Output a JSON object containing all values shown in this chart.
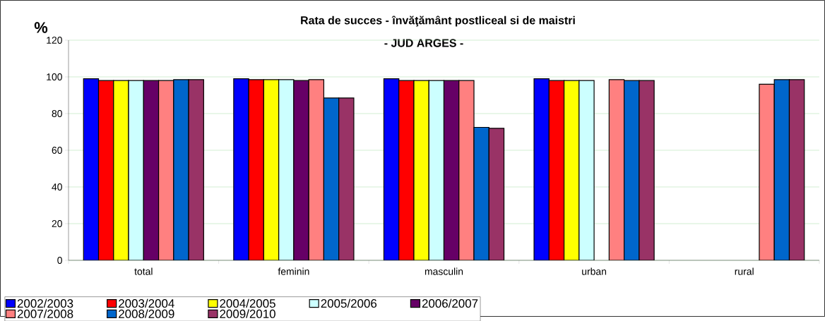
{
  "chart_data": {
    "type": "bar",
    "title": "Rata de succes - învăţământ postliceal si de maistri",
    "subtitle": "- JUD ARGES -",
    "ylabel": "%",
    "categories": [
      "total",
      "feminin",
      "masculin",
      "urban",
      "rural"
    ],
    "series": [
      {
        "name": "2002/2003",
        "color": "#0000ff",
        "values": [
          99,
          99,
          99,
          99,
          null
        ]
      },
      {
        "name": "2003/2004",
        "color": "#ff0000",
        "values": [
          98,
          98.5,
          98,
          98,
          null
        ]
      },
      {
        "name": "2004/2005",
        "color": "#ffff00",
        "values": [
          98,
          98.5,
          98,
          98,
          null
        ]
      },
      {
        "name": "2005/2006",
        "color": "#ccffff",
        "values": [
          98,
          98.5,
          98,
          98,
          null
        ]
      },
      {
        "name": "2006/2007",
        "color": "#660066",
        "values": [
          98,
          98,
          98,
          null,
          null
        ]
      },
      {
        "name": "2007/2008",
        "color": "#ff8080",
        "values": [
          98,
          98.5,
          98,
          98.5,
          96
        ]
      },
      {
        "name": "2008/2009",
        "color": "#0066cc",
        "values": [
          98.5,
          88.5,
          72.5,
          98,
          98.5
        ]
      },
      {
        "name": "2009/2010",
        "color": "#993366",
        "values": [
          98.5,
          88.5,
          72,
          98,
          98.5
        ]
      }
    ],
    "ylim": [
      0,
      120
    ],
    "yticks": [
      0,
      20,
      40,
      60,
      80,
      100,
      120
    ],
    "grid": "y",
    "legend": "bottom"
  }
}
